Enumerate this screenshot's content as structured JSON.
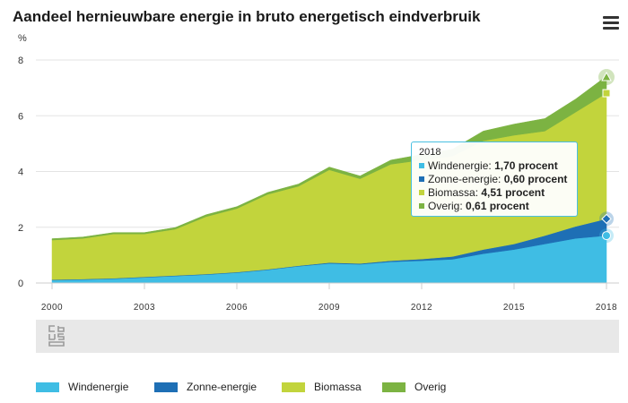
{
  "title": "Aandeel hernieuwbare energie in bruto energetisch eindverbruik",
  "unit": "%",
  "menu_icon": "hamburger-menu-icon",
  "logo_icon": "cbs-logo-icon",
  "colors": {
    "windenergie": "#3fbde4",
    "zonne_energie": "#1e6fb5",
    "biomassa": "#c2d43c",
    "overig": "#7cb342"
  },
  "tooltip": {
    "year": "2018",
    "rows": [
      {
        "label": "Windenergie:",
        "value": "1,70 procent",
        "color": "#3fbde4"
      },
      {
        "label": "Zonne-energie:",
        "value": "0,60 procent",
        "color": "#1e6fb5"
      },
      {
        "label": "Biomassa:",
        "value": "4,51 procent",
        "color": "#c2d43c"
      },
      {
        "label": "Overig:",
        "value": "0,61 procent",
        "color": "#7cb342"
      }
    ]
  },
  "chart_data": {
    "type": "area",
    "stacked": true,
    "title": "Aandeel hernieuwbare energie in bruto energetisch eindverbruik",
    "ylabel": "%",
    "xlabel": "",
    "ylim": [
      0,
      8
    ],
    "yticks": [
      0,
      2,
      4,
      6,
      8
    ],
    "xticks": [
      2000,
      2003,
      2006,
      2009,
      2012,
      2015,
      2018
    ],
    "grid": true,
    "legend_position": "bottom",
    "x": [
      2000,
      2001,
      2002,
      2003,
      2004,
      2005,
      2006,
      2007,
      2008,
      2009,
      2010,
      2011,
      2012,
      2013,
      2014,
      2015,
      2016,
      2017,
      2018
    ],
    "series": [
      {
        "name": "Windenergie",
        "color": "#3fbde4",
        "values": [
          0.1,
          0.12,
          0.15,
          0.2,
          0.25,
          0.3,
          0.37,
          0.47,
          0.6,
          0.7,
          0.67,
          0.76,
          0.8,
          0.85,
          1.05,
          1.2,
          1.4,
          1.6,
          1.7
        ]
      },
      {
        "name": "Zonne-energie",
        "color": "#1e6fb5",
        "values": [
          0.02,
          0.02,
          0.02,
          0.02,
          0.02,
          0.02,
          0.02,
          0.02,
          0.02,
          0.03,
          0.03,
          0.04,
          0.06,
          0.1,
          0.15,
          0.2,
          0.3,
          0.43,
          0.6
        ]
      },
      {
        "name": "Biomassa",
        "color": "#c2d43c",
        "values": [
          1.42,
          1.46,
          1.59,
          1.54,
          1.66,
          2.06,
          2.28,
          2.69,
          2.85,
          3.33,
          3.04,
          3.46,
          3.55,
          3.6,
          3.9,
          3.9,
          3.75,
          4.1,
          4.51
        ]
      },
      {
        "name": "Overig",
        "color": "#7cb342",
        "values": [
          0.05,
          0.05,
          0.05,
          0.05,
          0.06,
          0.07,
          0.07,
          0.07,
          0.08,
          0.1,
          0.1,
          0.15,
          0.2,
          0.25,
          0.35,
          0.4,
          0.45,
          0.47,
          0.61
        ]
      }
    ]
  },
  "legend": [
    {
      "label": "Windenergie",
      "color": "#3fbde4"
    },
    {
      "label": "Zonne-energie",
      "color": "#1e6fb5"
    },
    {
      "label": "Biomassa",
      "color": "#c2d43c"
    },
    {
      "label": "Overig",
      "color": "#7cb342"
    }
  ]
}
